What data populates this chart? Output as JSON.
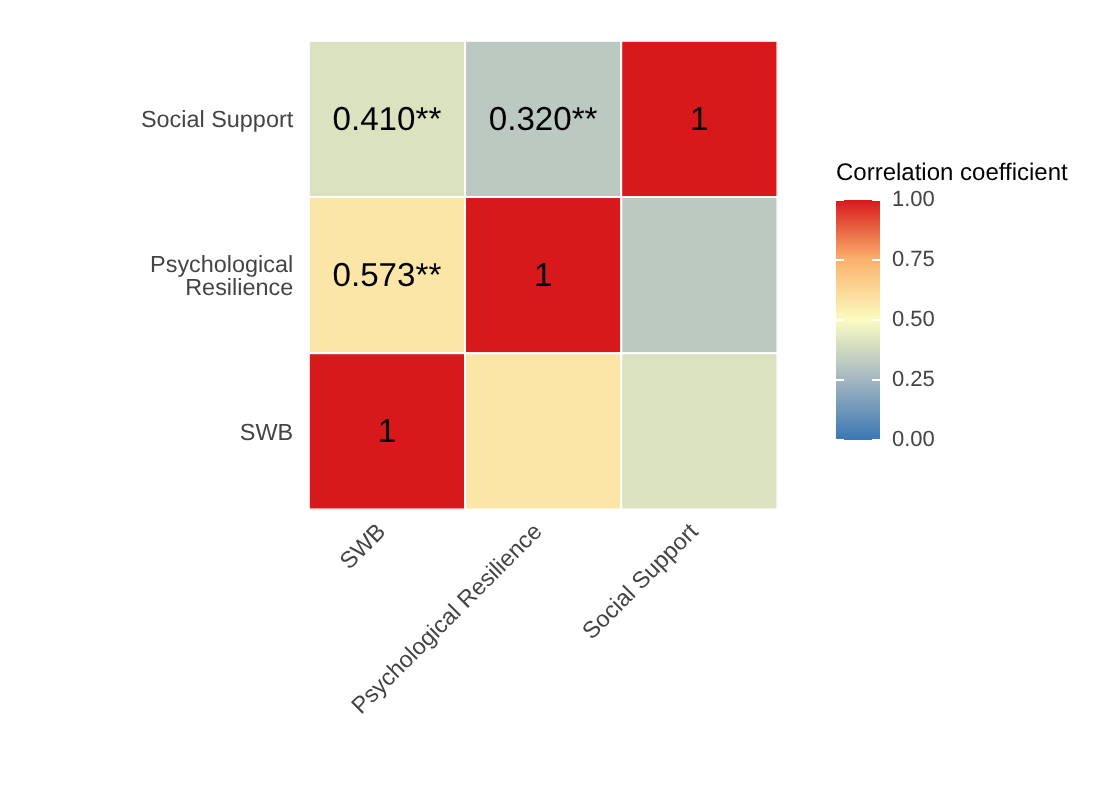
{
  "chart_data": {
    "type": "heatmap",
    "clabel": "Correlation coefficient",
    "categories": [
      "SWB",
      "Psychological Resilience",
      "Social Support"
    ],
    "y_categories": [
      "Social Support",
      "Psychological Resilience",
      "SWB"
    ],
    "cells": [
      [
        0.41,
        0.32,
        1
      ],
      [
        0.573,
        1,
        0.32
      ],
      [
        1,
        0.573,
        0.41
      ]
    ],
    "cell_labels": [
      [
        "0.410**",
        "0.320**",
        "1"
      ],
      [
        "0.573**",
        "1",
        null
      ],
      [
        "1",
        null,
        null
      ]
    ],
    "clim": [
      0,
      1
    ],
    "cticks": [
      {
        "value": 0,
        "label": "0.00"
      },
      {
        "value": 0.25,
        "label": "0.25"
      },
      {
        "value": 0.5,
        "label": "0.50"
      },
      {
        "value": 0.75,
        "label": "0.75"
      },
      {
        "value": 1,
        "label": "1.00"
      }
    ]
  }
}
